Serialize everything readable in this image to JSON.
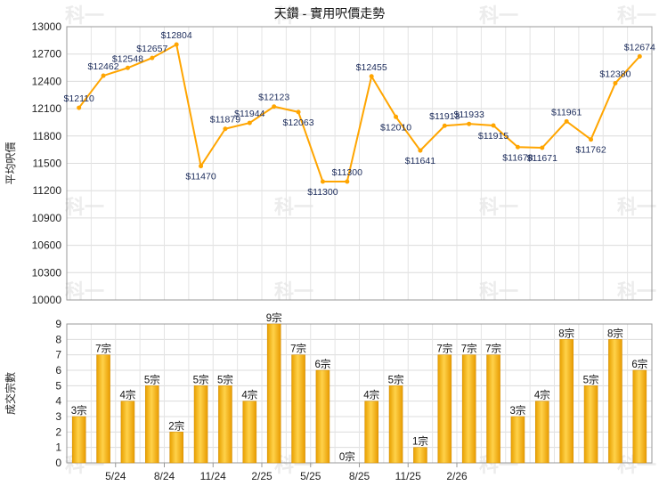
{
  "chart_data": [
    {
      "type": "line",
      "title": "天鑽 - 實用呎價走勢",
      "ylabel": "平均呎價",
      "ylim": [
        10000,
        13000
      ],
      "yticks": [
        10000,
        10300,
        10600,
        10900,
        11200,
        11500,
        11800,
        12100,
        12400,
        12700,
        13000
      ],
      "xticklabels": [
        "5/24",
        "8/24",
        "11/24",
        "2/25",
        "5/25",
        "8/25",
        "11/25",
        "2/26"
      ],
      "grid": true,
      "color": "#FFA500",
      "series": [
        {
          "values": [
            12110,
            12462,
            12548,
            12657,
            12804,
            11470,
            11879,
            11944,
            12123,
            12063,
            11300,
            11300,
            12455,
            12010,
            11641,
            11913,
            11933,
            11915,
            11678,
            11671,
            11961,
            11762,
            12380,
            12674
          ],
          "labels": [
            "$12110",
            "$12462",
            "$12548",
            "$12657",
            "$12804",
            "$11470",
            "$11879",
            "$11944",
            "$12123",
            "$12063",
            "$11300",
            "$11300",
            "$12455",
            "$12010",
            "$11641",
            "$11913",
            "$11933",
            "$11915",
            "$11678",
            "$11671",
            "$11961",
            "$11762",
            "$12380",
            "$12674"
          ]
        }
      ]
    },
    {
      "type": "bar",
      "ylabel": "成交宗數",
      "ylim": [
        0,
        9
      ],
      "yticks": [
        0,
        1,
        2,
        3,
        4,
        5,
        6,
        7,
        8,
        9
      ],
      "xticklabels": [
        "5/24",
        "8/24",
        "11/24",
        "2/25",
        "5/25",
        "8/25",
        "11/25",
        "2/26"
      ],
      "grid": true,
      "color": "#F2B01E",
      "series": [
        {
          "values": [
            3,
            7,
            4,
            5,
            2,
            5,
            5,
            4,
            9,
            7,
            6,
            0,
            4,
            5,
            1,
            7,
            7,
            7,
            3,
            4,
            8,
            5,
            8,
            6
          ],
          "labels": [
            "3宗",
            "7宗",
            "4宗",
            "5宗",
            "2宗",
            "5宗",
            "5宗",
            "4宗",
            "9宗",
            "7宗",
            "6宗",
            "0宗",
            "4宗",
            "5宗",
            "1宗",
            "7宗",
            "7宗",
            "7宗",
            "3宗",
            "4宗",
            "8宗",
            "5宗",
            "8宗",
            "6宗"
          ]
        }
      ]
    }
  ],
  "watermark": "科一"
}
